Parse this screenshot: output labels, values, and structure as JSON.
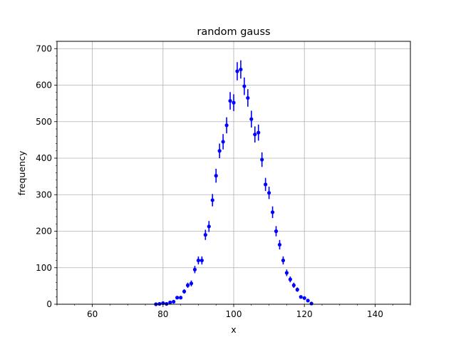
{
  "chart_data": {
    "type": "scatter",
    "title": "random gauss",
    "xlabel": "x",
    "ylabel": "frequency",
    "xlim": [
      50,
      150
    ],
    "ylim": [
      0,
      720
    ],
    "xticks": [
      60,
      80,
      100,
      120,
      140
    ],
    "yticks": [
      0,
      100,
      200,
      300,
      400,
      500,
      600,
      700
    ],
    "grid": true,
    "marker_color": "#0000ff",
    "series": [
      {
        "x": [
          78,
          79,
          80,
          81,
          82,
          83,
          84,
          85,
          86,
          87,
          88,
          89,
          90,
          91,
          92,
          93,
          94,
          95,
          96,
          97,
          98,
          99,
          100,
          101,
          102,
          103,
          104,
          105,
          106,
          107,
          108,
          109,
          110,
          111,
          112,
          113,
          114,
          115,
          116,
          117,
          118,
          119,
          120,
          121,
          122
        ],
        "y": [
          0,
          1,
          3,
          1,
          5,
          7,
          18,
          18,
          35,
          52,
          57,
          95,
          120,
          120,
          190,
          213,
          285,
          352,
          420,
          445,
          490,
          557,
          552,
          638,
          643,
          597,
          565,
          507,
          465,
          470,
          396,
          328,
          305,
          252,
          200,
          163,
          120,
          86,
          68,
          52,
          40,
          20,
          17,
          10,
          2
        ],
        "yerr": [
          0,
          1,
          2,
          1,
          2,
          3,
          4,
          4,
          6,
          7,
          8,
          10,
          11,
          11,
          14,
          15,
          17,
          19,
          20,
          21,
          22,
          24,
          23,
          25,
          25,
          24,
          24,
          23,
          22,
          22,
          20,
          18,
          17,
          16,
          14,
          13,
          11,
          9,
          8,
          7,
          6,
          4,
          4,
          3,
          1
        ]
      }
    ]
  }
}
